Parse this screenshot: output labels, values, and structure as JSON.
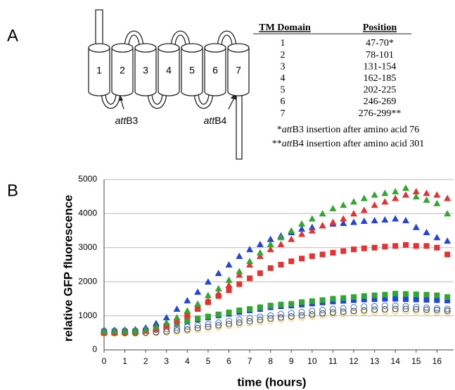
{
  "panel_a": {
    "letter": "A",
    "diagram": {
      "helices": [
        "1",
        "2",
        "3",
        "4",
        "5",
        "6",
        "7"
      ],
      "labels": [
        {
          "italic": "att",
          "text": "B3"
        },
        {
          "italic": "att",
          "text": "B4"
        }
      ]
    },
    "table": {
      "header": [
        "TM Domain",
        "Position"
      ],
      "rows": [
        [
          "1",
          "47-70*"
        ],
        [
          "2",
          "78-101"
        ],
        [
          "3",
          "131-154"
        ],
        [
          "4",
          "162-185"
        ],
        [
          "5",
          "202-225"
        ],
        [
          "6",
          "246-269"
        ],
        [
          "7",
          "276-299**"
        ]
      ],
      "notes": [
        {
          "mark": "*",
          "italic": "att",
          "text": "B3 insertion after amino acid 76"
        },
        {
          "mark": "**",
          "italic": "att",
          "text": "B4 insertion after amino acid 301"
        }
      ]
    }
  },
  "panel_b": {
    "letter": "B"
  },
  "chart_data": {
    "type": "scatter",
    "x_label": "time (hours)",
    "y_label": "relative GFP fluorescence",
    "xlim": [
      0,
      16.8
    ],
    "ylim": [
      0,
      5000
    ],
    "xticks": [
      0,
      1,
      2,
      3,
      4,
      5,
      6,
      7,
      8,
      9,
      10,
      11,
      12,
      13,
      14,
      15,
      16
    ],
    "yticks": [
      0,
      1000,
      2000,
      3000,
      4000,
      5000
    ],
    "grid": true,
    "x": [
      0,
      0.5,
      1,
      1.5,
      2,
      2.5,
      3,
      3.5,
      4,
      4.5,
      5,
      5.5,
      6,
      6.5,
      7,
      7.5,
      8,
      8.5,
      9,
      9.5,
      10,
      10.5,
      11,
      11.5,
      12,
      12.5,
      13,
      13.5,
      14,
      14.5,
      15,
      15.5,
      16,
      16.5
    ],
    "series": [
      {
        "color": "#e8c84a",
        "marker": "circle",
        "values": [
          480,
          480,
          480,
          480,
          490,
          500,
          510,
          530,
          560,
          590,
          620,
          660,
          700,
          740,
          780,
          820,
          860,
          890,
          920,
          950,
          980,
          1010,
          1040,
          1060,
          1080,
          1100,
          1110,
          1120,
          1130,
          1130,
          1120,
          1110,
          1100,
          1100
        ]
      },
      {
        "color": "#333333",
        "marker": "circle",
        "values": [
          500,
          500,
          500,
          500,
          510,
          520,
          540,
          570,
          600,
          640,
          680,
          720,
          760,
          800,
          840,
          880,
          920,
          950,
          980,
          1010,
          1040,
          1070,
          1100,
          1120,
          1140,
          1160,
          1180,
          1190,
          1200,
          1200,
          1190,
          1180,
          1170,
          1150
        ]
      },
      {
        "color": "#3a6fd8",
        "marker": "circle",
        "values": [
          560,
          560,
          560,
          560,
          570,
          590,
          610,
          640,
          680,
          720,
          760,
          800,
          850,
          890,
          930,
          970,
          1010,
          1050,
          1080,
          1110,
          1140,
          1170,
          1200,
          1220,
          1250,
          1270,
          1280,
          1300,
          1300,
          1280,
          1260,
          1240,
          1220,
          1200
        ]
      },
      {
        "color": "#2244dd",
        "marker": "square",
        "values": [
          520,
          520,
          530,
          540,
          570,
          630,
          700,
          760,
          830,
          890,
          950,
          1010,
          1060,
          1110,
          1160,
          1200,
          1250,
          1280,
          1300,
          1330,
          1360,
          1390,
          1420,
          1440,
          1460,
          1480,
          1490,
          1500,
          1500,
          1490,
          1480,
          1470,
          1460,
          1450
        ]
      },
      {
        "color": "#2fa82f",
        "marker": "square",
        "values": [
          500,
          500,
          510,
          520,
          560,
          620,
          700,
          780,
          850,
          920,
          980,
          1040,
          1100,
          1160,
          1200,
          1250,
          1300,
          1330,
          1350,
          1400,
          1430,
          1460,
          1500,
          1520,
          1550,
          1580,
          1600,
          1620,
          1650,
          1640,
          1630,
          1620,
          1600,
          1550
        ]
      },
      {
        "color": "#e83030",
        "marker": "square",
        "values": [
          520,
          520,
          530,
          540,
          560,
          610,
          700,
          840,
          1000,
          1200,
          1400,
          1580,
          1750,
          1930,
          2100,
          2250,
          2400,
          2500,
          2600,
          2680,
          2750,
          2800,
          2850,
          2900,
          2950,
          2980,
          3000,
          3030,
          3050,
          3080,
          3050,
          3050,
          3000,
          2800
        ]
      },
      {
        "color": "#2244dd",
        "marker": "triangle",
        "values": [
          580,
          580,
          590,
          600,
          650,
          780,
          950,
          1200,
          1450,
          1700,
          2000,
          2250,
          2500,
          2750,
          2950,
          3100,
          3250,
          3350,
          3450,
          3550,
          3600,
          3650,
          3700,
          3720,
          3750,
          3780,
          3800,
          3820,
          3850,
          3800,
          3600,
          3450,
          3300,
          3200
        ]
      },
      {
        "color": "#e83030",
        "marker": "triangle",
        "values": [
          520,
          520,
          530,
          540,
          560,
          620,
          750,
          880,
          1050,
          1250,
          1450,
          1650,
          1900,
          2200,
          2500,
          2750,
          2950,
          3100,
          3250,
          3400,
          3500,
          3650,
          3750,
          3850,
          4000,
          4100,
          4250,
          4350,
          4450,
          4550,
          4650,
          4600,
          4550,
          4450
        ]
      },
      {
        "color": "#2fa82f",
        "marker": "triangle",
        "values": [
          550,
          550,
          560,
          570,
          600,
          680,
          800,
          950,
          1150,
          1350,
          1600,
          1800,
          2050,
          2300,
          2600,
          2850,
          3100,
          3300,
          3500,
          3700,
          3850,
          4000,
          4150,
          4250,
          4350,
          4450,
          4550,
          4600,
          4650,
          4750,
          4500,
          4400,
          4300,
          4000
        ]
      }
    ]
  }
}
